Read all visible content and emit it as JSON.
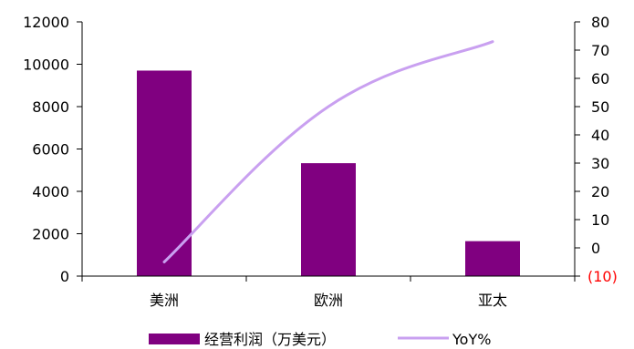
{
  "chart_data": {
    "type": "bar",
    "categories": [
      "美洲",
      "欧洲",
      "亚太"
    ],
    "series": [
      {
        "name": "经营利润（万美元）",
        "type": "bar",
        "axis": "left",
        "color": "#800080",
        "values": [
          9700,
          5330,
          1650
        ]
      },
      {
        "name": "YoY%",
        "type": "line",
        "axis": "right",
        "color": "#c9a0f0",
        "values": [
          -5,
          50,
          73
        ]
      }
    ],
    "left_axis": {
      "ylim": [
        0,
        12000
      ],
      "ticks": [
        0,
        2000,
        4000,
        6000,
        8000,
        10000,
        12000
      ],
      "tick_labels": [
        "0",
        "2000",
        "4000",
        "6000",
        "8000",
        "10000",
        "12000"
      ]
    },
    "right_axis": {
      "ylim": [
        -10,
        80
      ],
      "ticks": [
        -10,
        0,
        10,
        20,
        30,
        40,
        50,
        60,
        70,
        80
      ],
      "tick_labels": [
        "(10)",
        "0",
        "10",
        "20",
        "30",
        "40",
        "50",
        "60",
        "70",
        "80"
      ],
      "negative_label_color": "#ff0000"
    },
    "grid": false,
    "legend_position": "bottom"
  }
}
